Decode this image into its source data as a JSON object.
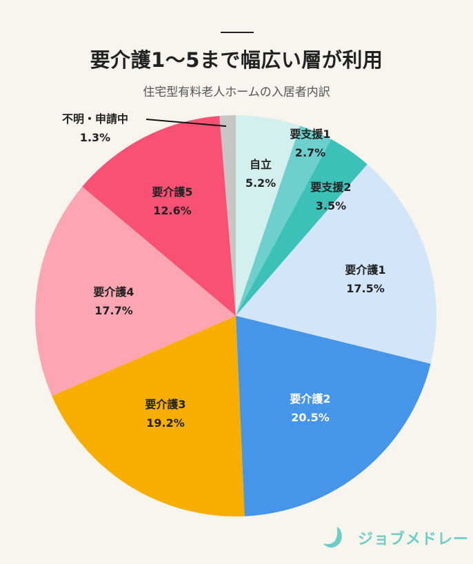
{
  "header": {
    "title": "要介護1～5まで幅広い層が利用",
    "subtitle": "住宅型有料老人ホームの入居者内訳"
  },
  "chart_data": {
    "type": "pie",
    "title": "要介護1～5まで幅広い層が利用",
    "subtitle": "住宅型有料老人ホームの入居者内訳",
    "start": "12 o'clock, clockwise",
    "unit": "%",
    "slices": [
      {
        "label": "自立",
        "value": 5.2,
        "display": "5.2%",
        "color": "#d3efee",
        "text_color": "#222222"
      },
      {
        "label": "要支援1",
        "value": 2.7,
        "display": "2.7%",
        "color": "#6dd0cc",
        "text_color": "#222222"
      },
      {
        "label": "要支援2",
        "value": 3.5,
        "display": "3.5%",
        "color": "#3bc1b8",
        "text_color": "#222222"
      },
      {
        "label": "要介護1",
        "value": 17.5,
        "display": "17.5%",
        "color": "#d3e5f8",
        "text_color": "#222222"
      },
      {
        "label": "要介護2",
        "value": 20.5,
        "display": "20.5%",
        "color": "#4595e8",
        "text_color": "#ffffff"
      },
      {
        "label": "要介護3",
        "value": 19.2,
        "display": "19.2%",
        "color": "#f8ae00",
        "text_color": "#222222"
      },
      {
        "label": "要介護4",
        "value": 17.7,
        "display": "17.7%",
        "color": "#fba6b2",
        "text_color": "#222222"
      },
      {
        "label": "要介護5",
        "value": 12.6,
        "display": "12.6%",
        "color": "#f95174",
        "text_color": "#222222"
      },
      {
        "label": "不明・申請中",
        "value": 1.3,
        "display": "1.3%",
        "color": "#c6c6c6",
        "text_color": "#222222"
      }
    ]
  },
  "footer": {
    "logo_text": "ジョブメドレー",
    "logo_color": "#6ccfc7"
  }
}
